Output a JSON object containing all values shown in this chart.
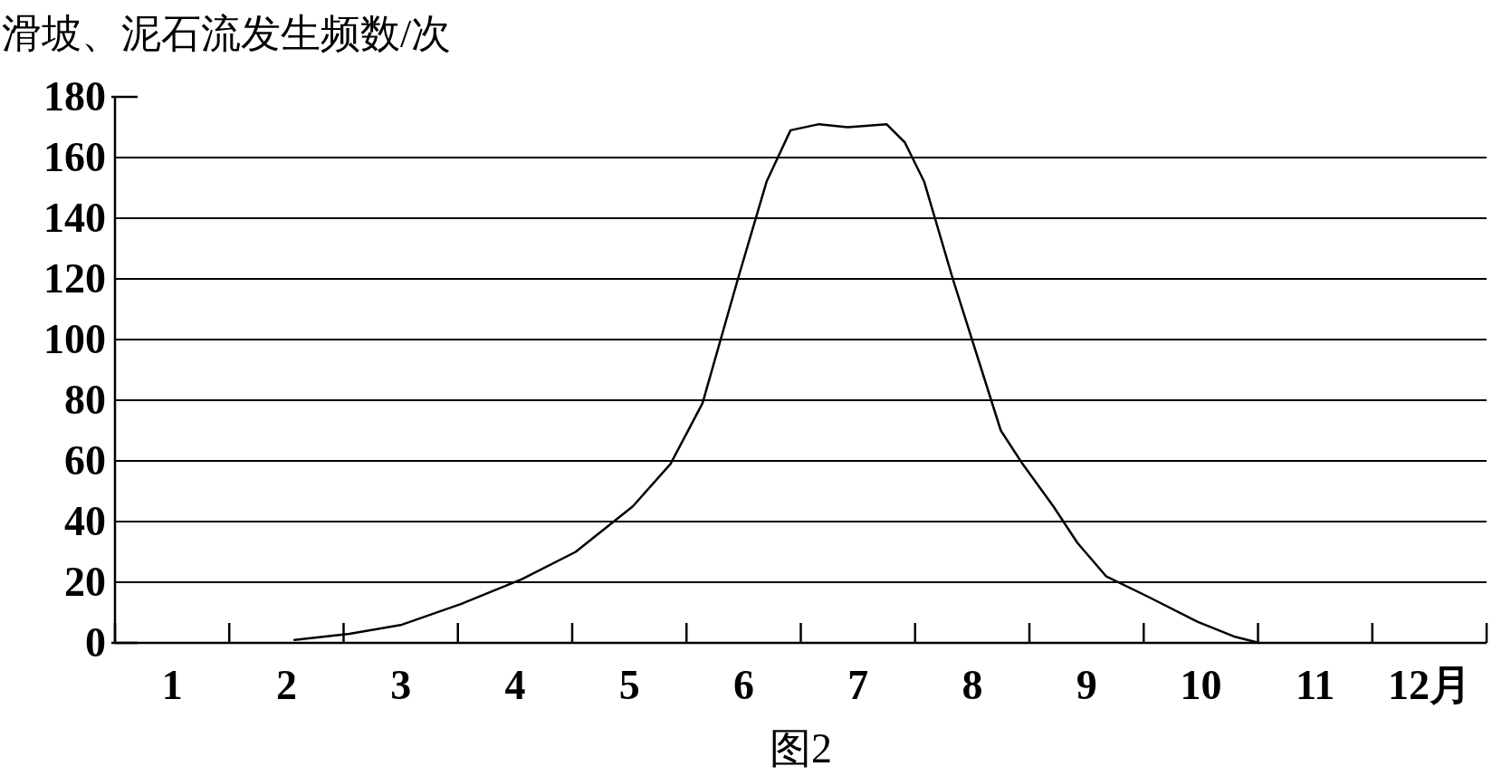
{
  "chart_data": {
    "type": "line",
    "ylabel": "滑坡、泥石流发生频数/次",
    "annotations": [
      "图2"
    ],
    "xlim": [
      0,
      12
    ],
    "xticks": [
      {
        "value": 0.5,
        "label": "1"
      },
      {
        "value": 1.5,
        "label": "2"
      },
      {
        "value": 2.5,
        "label": "3"
      },
      {
        "value": 3.5,
        "label": "4"
      },
      {
        "value": 4.5,
        "label": "5"
      },
      {
        "value": 5.5,
        "label": "6"
      },
      {
        "value": 6.5,
        "label": "7"
      },
      {
        "value": 7.5,
        "label": "8"
      },
      {
        "value": 8.5,
        "label": "9"
      },
      {
        "value": 9.5,
        "label": "10"
      },
      {
        "value": 10.5,
        "label": "11"
      },
      {
        "value": 11.5,
        "label": "12月"
      }
    ],
    "ylim": [
      0,
      180
    ],
    "yticks": [
      0,
      20,
      40,
      60,
      80,
      100,
      120,
      140,
      160,
      180
    ],
    "grid": "y",
    "marker": "none",
    "line_style": "solid",
    "series": [
      {
        "color": "#000000",
        "x": [
          1.57,
          2.05,
          2.51,
          3.04,
          3.56,
          4.03,
          4.53,
          4.86,
          5.14,
          5.45,
          5.7,
          5.91,
          6.16,
          6.41,
          6.75,
          6.91,
          7.08,
          7.33,
          7.54,
          7.75,
          7.94,
          8.21,
          8.42,
          8.67,
          9.05,
          9.47,
          9.8,
          10.01
        ],
        "values": [
          1,
          3,
          6,
          13,
          21,
          30,
          45,
          59,
          79,
          120,
          152,
          169,
          171,
          170,
          171,
          165,
          152,
          120,
          95,
          70,
          59,
          45,
          33,
          22,
          15,
          7,
          2,
          0
        ]
      }
    ]
  }
}
